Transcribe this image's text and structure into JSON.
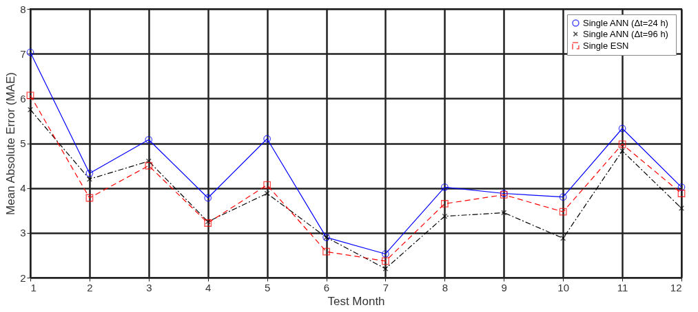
{
  "chart_data": {
    "type": "line",
    "xlabel": "Test Month",
    "ylabel": "Mean Absolute Error (MAE)",
    "x": [
      1,
      2,
      3,
      4,
      5,
      6,
      7,
      8,
      9,
      10,
      11,
      12
    ],
    "series": [
      {
        "name": "Single ANN (Δt=24  h)",
        "color": "#0000ff",
        "marker": "circle",
        "line_style": "solid",
        "values": [
          7.03,
          4.33,
          5.08,
          3.78,
          5.1,
          2.9,
          2.53,
          4.02,
          3.88,
          3.8,
          5.33,
          4.02
        ]
      },
      {
        "name": "Single ANN (Δt=96  h)",
        "color": "#000000",
        "marker": "cross",
        "line_style": "dashdot",
        "values": [
          5.75,
          4.2,
          4.6,
          3.25,
          3.88,
          2.9,
          2.2,
          3.37,
          3.45,
          2.88,
          4.83,
          3.55
        ]
      },
      {
        "name": "Single ESN",
        "color": "#ff0000",
        "marker": "square",
        "line_style": "dashed",
        "values": [
          6.07,
          3.78,
          4.5,
          3.22,
          4.07,
          2.58,
          2.37,
          3.65,
          3.85,
          3.47,
          4.98,
          3.88
        ]
      }
    ],
    "xlim": [
      1,
      12
    ],
    "xticks": [
      1,
      2,
      3,
      4,
      5,
      6,
      7,
      8,
      9,
      10,
      11,
      12
    ],
    "ylim": [
      2,
      8
    ],
    "yticks": [
      2,
      3,
      4,
      5,
      6,
      7,
      8
    ],
    "grid": true,
    "legend": "top right"
  }
}
